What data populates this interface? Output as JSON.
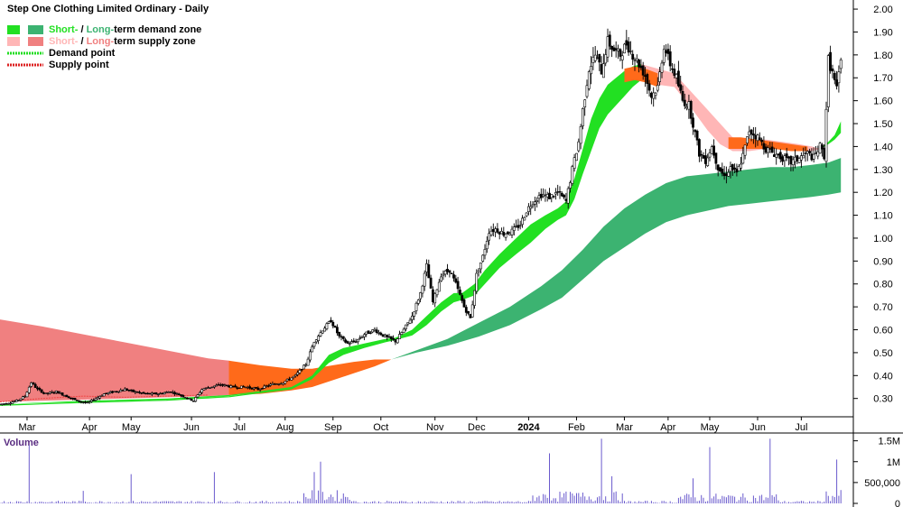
{
  "chart_data": {
    "type": "candlestick",
    "title": "Step One Clothing Limited Ordinary - Daily",
    "legend": {
      "placement": "top-left",
      "demand_zone": {
        "prefix": "Short-",
        "sep": " / ",
        "long": "Long-",
        "suffix": "term demand zone",
        "short_color": "#22e022",
        "long_color": "#3cb371"
      },
      "supply_zone": {
        "prefix": "Short-",
        "sep": " / ",
        "long": "Long-",
        "suffix": "term supply zone",
        "short_color": "#ffb6b6",
        "long_color": "#f08080"
      },
      "demand_point": {
        "label": "Demand point",
        "color": "#22dd22"
      },
      "supply_point": {
        "label": "Supply point",
        "color": "#dd2222"
      }
    },
    "price_axis": {
      "ylim": [
        0.22,
        2.02
      ],
      "ticks": [
        "0.30",
        "0.40",
        "0.50",
        "0.60",
        "0.70",
        "0.80",
        "0.90",
        "1.00",
        "1.10",
        "1.20",
        "1.30",
        "1.40",
        "1.50",
        "1.60",
        "1.70",
        "1.80",
        "1.90",
        "2.00"
      ],
      "grid": false
    },
    "x_axis": {
      "labels": [
        "Mar",
        "Apr",
        "May",
        "Jun",
        "Jul",
        "Aug",
        "Sep",
        "Oct",
        "Nov",
        "Dec",
        "2024",
        "Feb",
        "Mar",
        "Apr",
        "May",
        "Jun",
        "Jul"
      ],
      "label_day_index": [
        13,
        43,
        63,
        92,
        115,
        137,
        160,
        183,
        209,
        229,
        254,
        277,
        300,
        321,
        341,
        364,
        385
      ]
    },
    "volume_panel": {
      "label": "Volume",
      "ylim": [
        0,
        1600000
      ],
      "ticks": [
        "0",
        "500,000",
        "1M",
        "1.5M"
      ],
      "bar_color": "#6a5acd"
    },
    "price_series": [
      [
        0,
        0.275
      ],
      [
        4,
        0.28
      ],
      [
        8,
        0.29
      ],
      [
        12,
        0.31
      ],
      [
        15,
        0.37
      ],
      [
        18,
        0.34
      ],
      [
        22,
        0.32
      ],
      [
        27,
        0.33
      ],
      [
        32,
        0.31
      ],
      [
        37,
        0.29
      ],
      [
        42,
        0.28
      ],
      [
        46,
        0.3
      ],
      [
        50,
        0.32
      ],
      [
        55,
        0.33
      ],
      [
        60,
        0.34
      ],
      [
        64,
        0.33
      ],
      [
        70,
        0.32
      ],
      [
        76,
        0.32
      ],
      [
        82,
        0.33
      ],
      [
        88,
        0.31
      ],
      [
        93,
        0.29
      ],
      [
        97,
        0.34
      ],
      [
        101,
        0.35
      ],
      [
        106,
        0.36
      ],
      [
        112,
        0.35
      ],
      [
        118,
        0.35
      ],
      [
        124,
        0.34
      ],
      [
        130,
        0.36
      ],
      [
        136,
        0.37
      ],
      [
        142,
        0.4
      ],
      [
        147,
        0.45
      ],
      [
        151,
        0.55
      ],
      [
        155,
        0.6
      ],
      [
        159,
        0.64
      ],
      [
        163,
        0.57
      ],
      [
        167,
        0.54
      ],
      [
        171,
        0.55
      ],
      [
        175,
        0.58
      ],
      [
        180,
        0.6
      ],
      [
        185,
        0.57
      ],
      [
        190,
        0.55
      ],
      [
        194,
        0.6
      ],
      [
        198,
        0.66
      ],
      [
        202,
        0.76
      ],
      [
        205,
        0.88
      ],
      [
        208,
        0.72
      ],
      [
        212,
        0.84
      ],
      [
        216,
        0.86
      ],
      [
        219,
        0.8
      ],
      [
        223,
        0.7
      ],
      [
        226,
        0.65
      ],
      [
        229,
        0.84
      ],
      [
        232,
        0.92
      ],
      [
        235,
        1.03
      ],
      [
        238,
        1.04
      ],
      [
        242,
        1.02
      ],
      [
        246,
        1.03
      ],
      [
        250,
        1.06
      ],
      [
        253,
        1.12
      ],
      [
        256,
        1.16
      ],
      [
        260,
        1.19
      ],
      [
        264,
        1.18
      ],
      [
        268,
        1.2
      ],
      [
        272,
        1.16
      ],
      [
        275,
        1.3
      ],
      [
        278,
        1.42
      ],
      [
        280,
        1.56
      ],
      [
        283,
        1.74
      ],
      [
        286,
        1.8
      ],
      [
        289,
        1.73
      ],
      [
        292,
        1.86
      ],
      [
        295,
        1.82
      ],
      [
        298,
        1.8
      ],
      [
        301,
        1.85
      ],
      [
        304,
        1.8
      ],
      [
        307,
        1.76
      ],
      [
        310,
        1.71
      ],
      [
        313,
        1.62
      ],
      [
        316,
        1.66
      ],
      [
        319,
        1.84
      ],
      [
        322,
        1.76
      ],
      [
        325,
        1.7
      ],
      [
        328,
        1.6
      ],
      [
        331,
        1.58
      ],
      [
        333,
        1.5
      ],
      [
        336,
        1.37
      ],
      [
        339,
        1.34
      ],
      [
        342,
        1.4
      ],
      [
        345,
        1.31
      ],
      [
        348,
        1.27
      ],
      [
        351,
        1.31
      ],
      [
        354,
        1.28
      ],
      [
        357,
        1.36
      ],
      [
        360,
        1.47
      ],
      [
        364,
        1.44
      ],
      [
        368,
        1.39
      ],
      [
        372,
        1.37
      ],
      [
        376,
        1.35
      ],
      [
        380,
        1.33
      ],
      [
        384,
        1.35
      ],
      [
        388,
        1.37
      ],
      [
        391,
        1.35
      ],
      [
        394,
        1.4
      ],
      [
        396,
        1.36
      ],
      [
        398,
        1.78
      ],
      [
        400,
        1.72
      ],
      [
        402,
        1.65
      ],
      [
        404,
        1.77
      ]
    ],
    "short_demand_zone": [
      [
        0,
        0.275,
        0.275
      ],
      [
        40,
        0.29,
        0.285
      ],
      [
        80,
        0.3,
        0.295
      ],
      [
        110,
        0.315,
        0.31
      ],
      [
        140,
        0.35,
        0.345
      ],
      [
        150,
        0.4,
        0.385
      ],
      [
        158,
        0.49,
        0.455
      ],
      [
        165,
        0.52,
        0.49
      ],
      [
        175,
        0.54,
        0.52
      ],
      [
        185,
        0.56,
        0.545
      ],
      [
        190,
        0.565,
        0.555
      ],
      [
        198,
        0.6,
        0.575
      ],
      [
        205,
        0.66,
        0.62
      ],
      [
        212,
        0.72,
        0.68
      ],
      [
        218,
        0.76,
        0.72
      ],
      [
        222,
        0.76,
        0.73
      ],
      [
        228,
        0.8,
        0.75
      ],
      [
        233,
        0.86,
        0.8
      ],
      [
        240,
        0.93,
        0.87
      ],
      [
        248,
        1.0,
        0.93
      ],
      [
        255,
        1.06,
        0.98
      ],
      [
        262,
        1.1,
        1.04
      ],
      [
        268,
        1.13,
        1.08
      ],
      [
        272,
        1.16,
        1.1
      ],
      [
        276,
        1.26,
        1.17
      ],
      [
        280,
        1.39,
        1.28
      ],
      [
        284,
        1.52,
        1.38
      ],
      [
        288,
        1.61,
        1.48
      ],
      [
        292,
        1.67,
        1.54
      ],
      [
        296,
        1.7,
        1.58
      ],
      [
        300,
        1.73,
        1.62
      ],
      [
        304,
        1.75,
        1.66
      ],
      [
        308,
        1.76,
        1.69
      ]
    ],
    "short_supply_zone": [
      [
        308,
        1.76,
        1.69
      ],
      [
        316,
        1.74,
        1.67
      ],
      [
        324,
        1.72,
        1.66
      ],
      [
        332,
        1.64,
        1.57
      ],
      [
        340,
        1.56,
        1.47
      ],
      [
        346,
        1.5,
        1.41
      ],
      [
        352,
        1.44,
        1.38
      ],
      [
        360,
        1.43,
        1.38
      ],
      [
        368,
        1.43,
        1.39
      ],
      [
        376,
        1.42,
        1.39
      ],
      [
        384,
        1.41,
        1.38
      ],
      [
        390,
        1.4,
        1.38
      ],
      [
        394,
        1.39,
        1.39
      ]
    ],
    "short_demand_zone_end": [
      [
        394,
        1.39,
        1.39
      ],
      [
        398,
        1.42,
        1.41
      ],
      [
        401,
        1.45,
        1.43
      ],
      [
        404,
        1.51,
        1.46
      ]
    ],
    "long_demand_zone": [
      [
        188,
        0.47,
        0.47
      ],
      [
        200,
        0.51,
        0.5
      ],
      [
        215,
        0.56,
        0.53
      ],
      [
        230,
        0.63,
        0.57
      ],
      [
        245,
        0.7,
        0.62
      ],
      [
        260,
        0.79,
        0.69
      ],
      [
        270,
        0.86,
        0.74
      ],
      [
        280,
        0.95,
        0.82
      ],
      [
        290,
        1.05,
        0.9
      ],
      [
        300,
        1.13,
        0.96
      ],
      [
        310,
        1.19,
        1.02
      ],
      [
        320,
        1.24,
        1.07
      ],
      [
        330,
        1.27,
        1.1
      ],
      [
        340,
        1.28,
        1.12
      ],
      [
        350,
        1.29,
        1.14
      ],
      [
        360,
        1.3,
        1.15
      ],
      [
        370,
        1.31,
        1.16
      ],
      [
        380,
        1.31,
        1.17
      ],
      [
        390,
        1.32,
        1.18
      ],
      [
        398,
        1.33,
        1.19
      ],
      [
        404,
        1.35,
        1.2
      ]
    ],
    "long_supply_zone": [
      [
        0,
        0.645,
        0.285
      ],
      [
        20,
        0.615,
        0.29
      ],
      [
        40,
        0.58,
        0.295
      ],
      [
        60,
        0.545,
        0.3
      ],
      [
        80,
        0.51,
        0.305
      ],
      [
        100,
        0.475,
        0.31
      ],
      [
        110,
        0.465,
        0.315
      ]
    ],
    "long_supply_zone_orange": [
      [
        110,
        0.465,
        0.315
      ],
      [
        125,
        0.445,
        0.32
      ],
      [
        140,
        0.43,
        0.335
      ],
      [
        150,
        0.43,
        0.35
      ],
      [
        160,
        0.445,
        0.38
      ],
      [
        170,
        0.46,
        0.41
      ],
      [
        180,
        0.47,
        0.44
      ],
      [
        188,
        0.47,
        0.47
      ]
    ],
    "supply_dashed_line": [
      [
        0,
        0.285
      ],
      [
        20,
        0.3
      ],
      [
        40,
        0.31
      ],
      [
        60,
        0.305
      ],
      [
        80,
        0.31
      ],
      [
        100,
        0.315
      ]
    ],
    "volume_spikes": [
      [
        14,
        1400000
      ],
      [
        40,
        300000
      ],
      [
        63,
        700000
      ],
      [
        103,
        750000
      ],
      [
        151,
        750000
      ],
      [
        154,
        1000000
      ],
      [
        264,
        1200000
      ],
      [
        289,
        1550000
      ],
      [
        294,
        650000
      ],
      [
        333,
        600000
      ],
      [
        341,
        1350000
      ],
      [
        370,
        1550000
      ],
      [
        402,
        1050000
      ]
    ]
  }
}
